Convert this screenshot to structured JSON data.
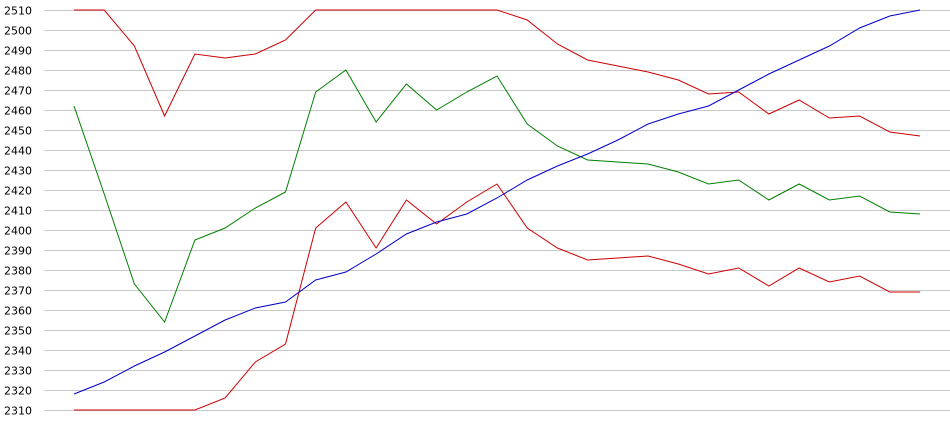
{
  "chart_data": {
    "type": "line",
    "title": "",
    "xlabel": "",
    "ylabel": "",
    "ylim": [
      2310,
      2510
    ],
    "yticks": [
      2310,
      2320,
      2330,
      2340,
      2350,
      2360,
      2370,
      2380,
      2390,
      2400,
      2410,
      2420,
      2430,
      2440,
      2450,
      2460,
      2470,
      2480,
      2490,
      2500,
      2510
    ],
    "grid": true,
    "legend": "none",
    "x": [
      0,
      1,
      2,
      3,
      4,
      5,
      6,
      7,
      8,
      9,
      10,
      11,
      12,
      13,
      14,
      15,
      16,
      17,
      18,
      19,
      20,
      21,
      22,
      23,
      24,
      25,
      26,
      27,
      28
    ],
    "series": [
      {
        "color": "#cc0000",
        "values": [
          2510,
          2510,
          2492,
          2457,
          2488,
          2486,
          2488,
          2495,
          2510,
          2510,
          2510,
          2510,
          2510,
          2510,
          2510,
          2505,
          2493,
          2485,
          2482,
          2479,
          2475,
          2468,
          2469,
          2458,
          2465,
          2456,
          2457,
          2449,
          2447
        ]
      },
      {
        "color": "#008000",
        "values": [
          2462,
          2418,
          2373,
          2354,
          2395,
          2401,
          2411,
          2419,
          2469,
          2480,
          2454,
          2473,
          2460,
          2469,
          2477,
          2453,
          2442,
          2435,
          2434,
          2433,
          2429,
          2423,
          2425,
          2415,
          2423,
          2415,
          2417,
          2409,
          2408
        ]
      },
      {
        "color": "#cc0000",
        "values": [
          2310,
          2310,
          2310,
          2310,
          2310,
          2316,
          2334,
          2343,
          2401,
          2414,
          2391,
          2415,
          2403,
          2414,
          2423,
          2401,
          2391,
          2385,
          2386,
          2387,
          2383,
          2378,
          2381,
          2372,
          2381,
          2374,
          2377,
          2369,
          2369
        ]
      },
      {
        "color": "#0000cc",
        "values": [
          2318,
          2324,
          2332,
          2339,
          2347,
          2355,
          2361,
          2364,
          2375,
          2379,
          2388,
          2398,
          2404,
          2408,
          2416,
          2425,
          2432,
          2438,
          2445,
          2453,
          2458,
          2462,
          2470,
          2478,
          2485,
          2492,
          2501,
          2507,
          2510
        ]
      }
    ]
  }
}
